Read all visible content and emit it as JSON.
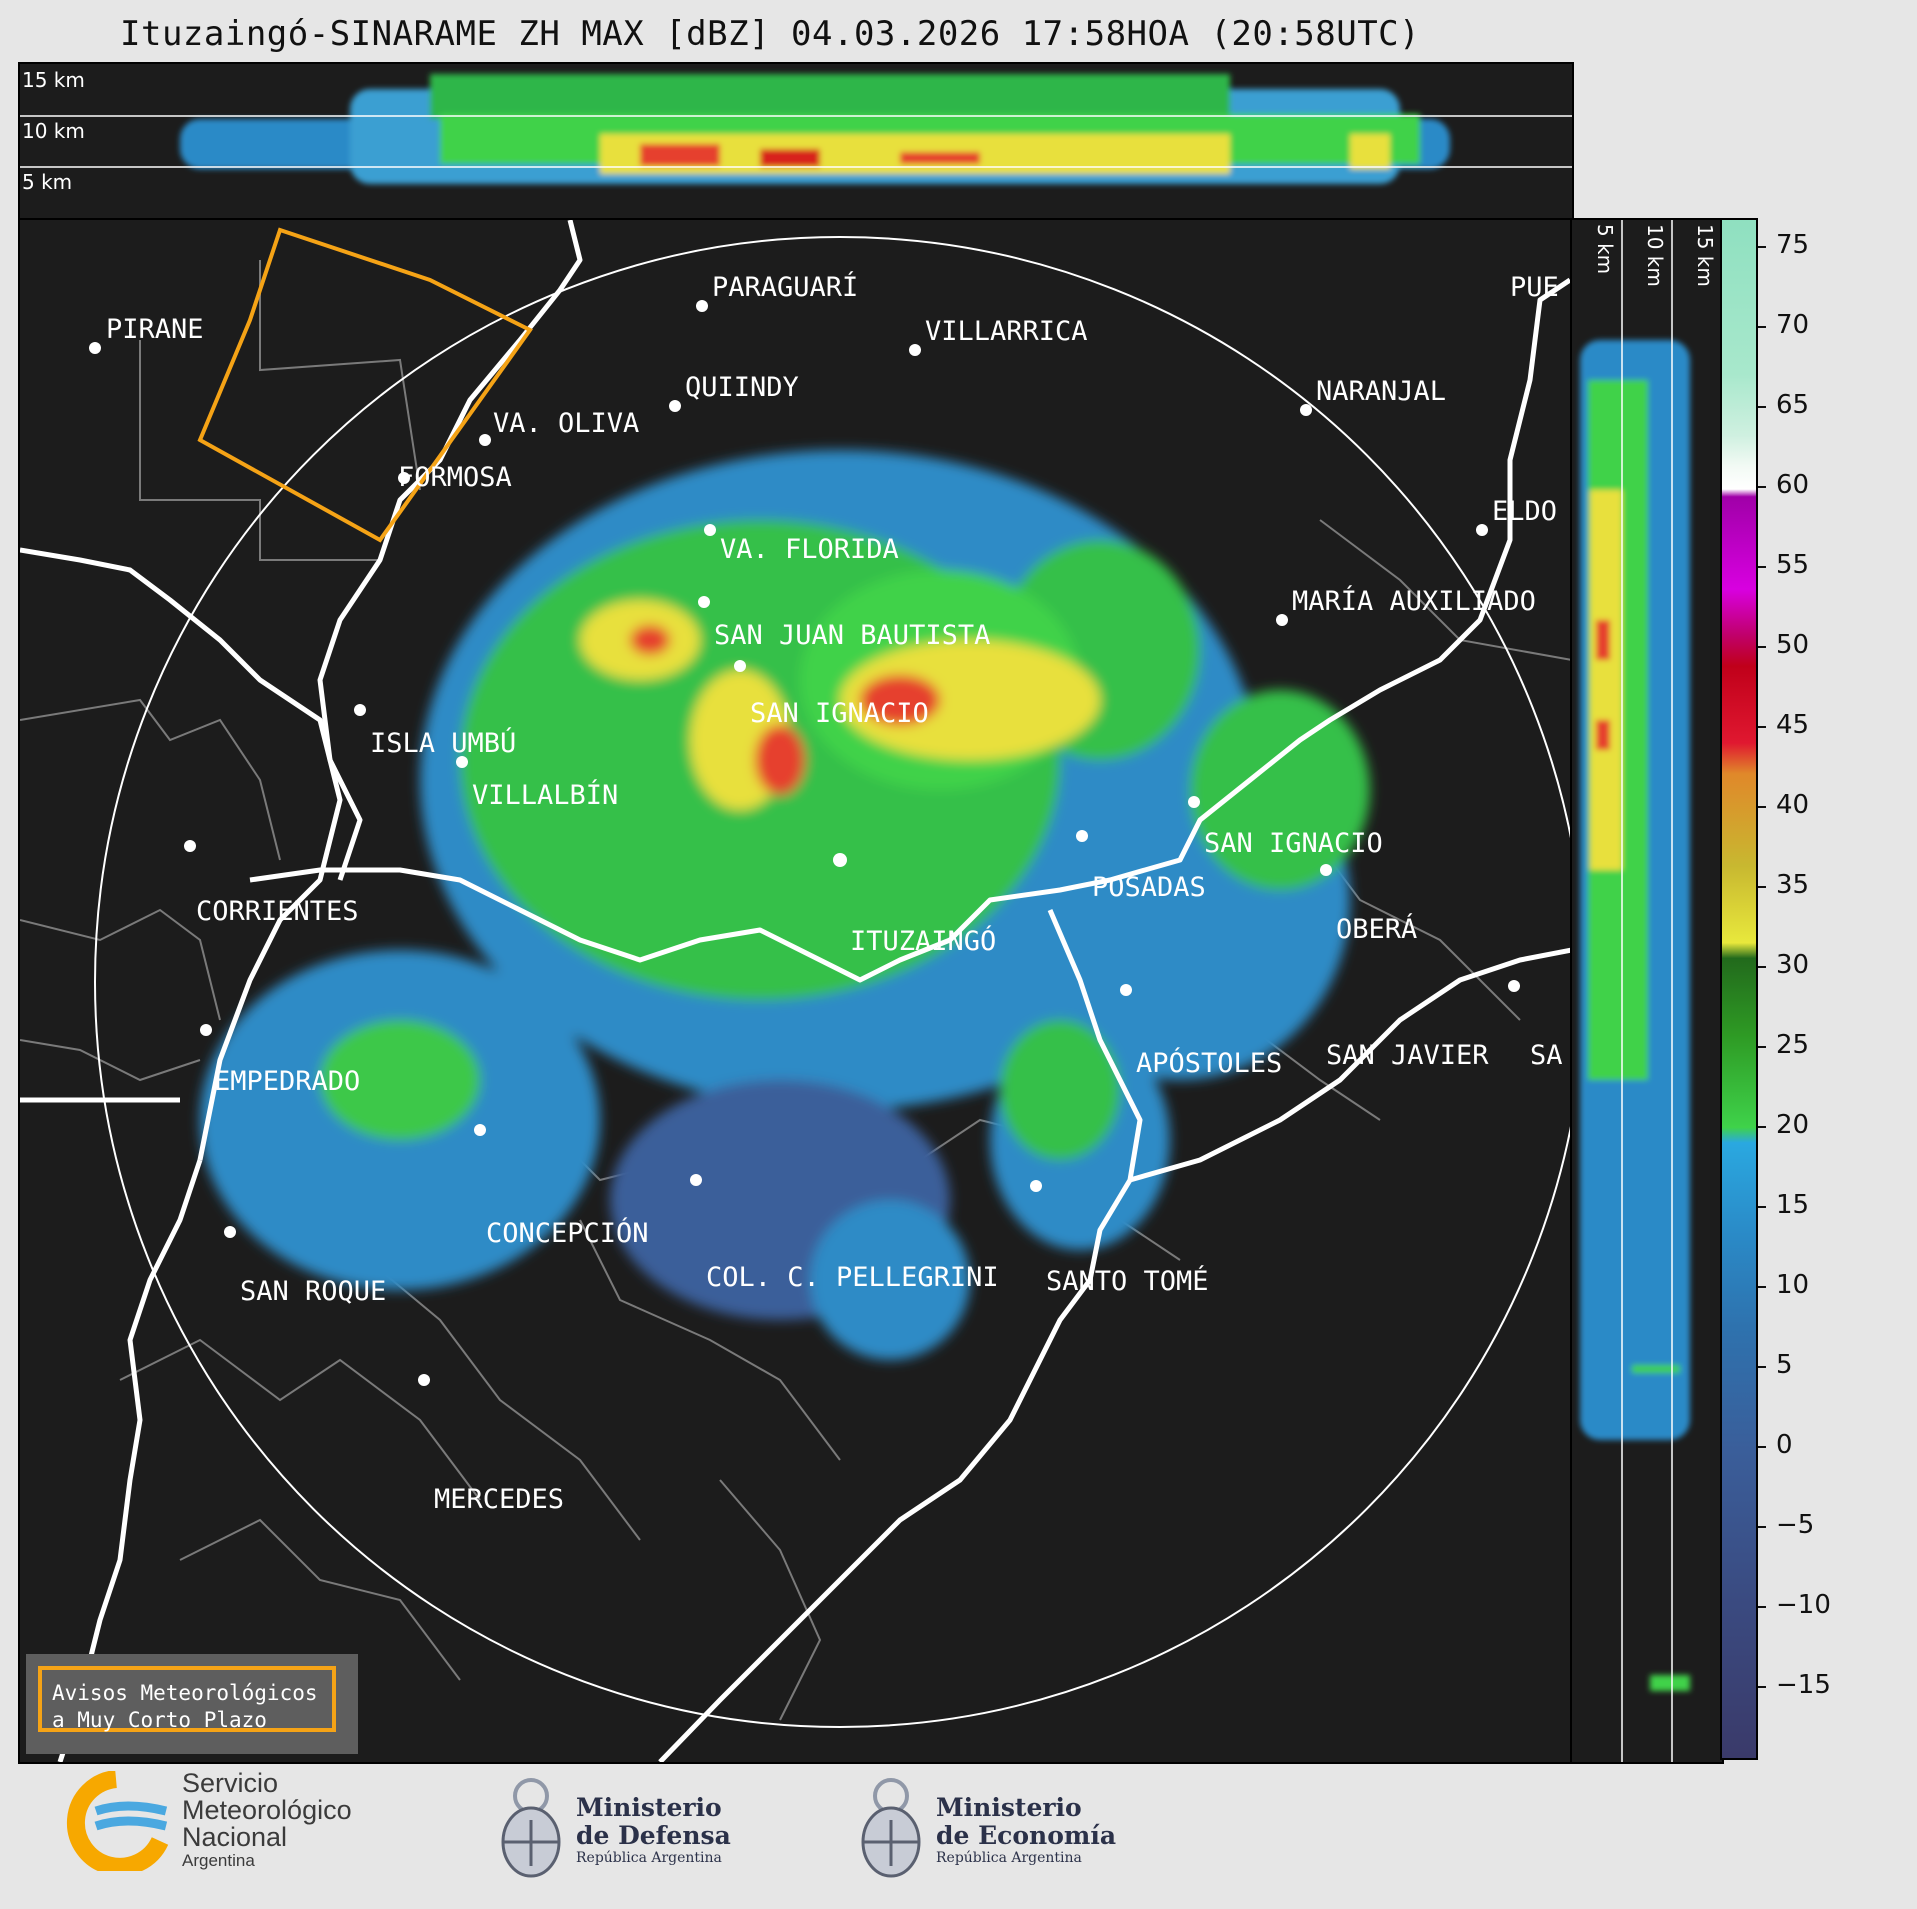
{
  "title": "Ituzaingó-SINARAME ZH MAX [dBZ] 04.03.2026 17:58HOA (20:58UTC)",
  "top_panel": {
    "height_labels": [
      "15 km",
      "10 km",
      "5 km"
    ]
  },
  "side_panel": {
    "height_labels": [
      "5 km",
      "10 km",
      "15 km"
    ]
  },
  "places": [
    {
      "name": "PIRANE"
    },
    {
      "name": "PARAGUARÍ"
    },
    {
      "name": "VILLARRICA"
    },
    {
      "name": "QUIINDY"
    },
    {
      "name": "VA. OLIVA"
    },
    {
      "name": "FORMOSA"
    },
    {
      "name": "NARANJAL"
    },
    {
      "name": "PUE"
    },
    {
      "name": "ELDO"
    },
    {
      "name": "MARÍA AUXILIADO"
    },
    {
      "name": "VA. FLORIDA"
    },
    {
      "name": "SAN JUAN BAUTISTA"
    },
    {
      "name": "SAN IGNACIO"
    },
    {
      "name": "ISLA UMBÚ"
    },
    {
      "name": "VILLALBÍN"
    },
    {
      "name": "SAN IGNACIO"
    },
    {
      "name": "POSADAS"
    },
    {
      "name": "OBERÁ"
    },
    {
      "name": "CORRIENTES"
    },
    {
      "name": "ITUZAINGÓ"
    },
    {
      "name": "APÓSTOLES"
    },
    {
      "name": "SAN JAVIER"
    },
    {
      "name": "SA"
    },
    {
      "name": "EMPEDRADO"
    },
    {
      "name": "CONCEPCIÓN"
    },
    {
      "name": "COL. C. PELLEGRINI"
    },
    {
      "name": "SANTO TOMÉ"
    },
    {
      "name": "SAN ROQUE"
    },
    {
      "name": "MERCEDES"
    }
  ],
  "colorbar": {
    "ticks": [
      "75",
      "70",
      "65",
      "60",
      "55",
      "50",
      "45",
      "40",
      "35",
      "30",
      "25",
      "20",
      "15",
      "10",
      "5",
      "0",
      "−5",
      "−10",
      "−15"
    ],
    "range": [
      -20,
      77
    ]
  },
  "warning_box": {
    "line1": "Avisos Meteorológicos",
    "line2": "a Muy Corto Plazo",
    "border_color": "#f5a316"
  },
  "logos": {
    "smn": {
      "line1": "Servicio",
      "line2": "Meteorológico",
      "line3": "Nacional",
      "sub": "Argentina"
    },
    "defensa": {
      "line1": "Ministerio",
      "line2": "de Defensa",
      "sub": "República Argentina"
    },
    "economia": {
      "line1": "Ministerio",
      "line2": "de Economía",
      "sub": "República Argentina"
    }
  },
  "colors": {
    "background": "#1c1c1c",
    "rivers": "#ffffff",
    "borders": "#7a7a7a",
    "alert_polygon": "#f5a316"
  }
}
